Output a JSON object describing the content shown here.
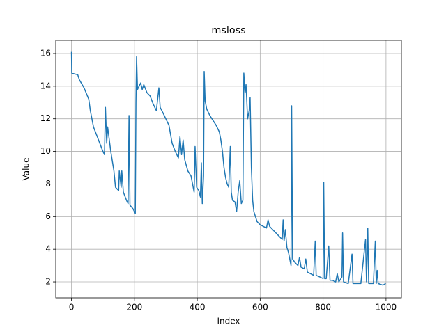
{
  "chart_data": {
    "type": "line",
    "title": "msloss",
    "x_label": "Index",
    "y_label": "Value",
    "x": [
      0,
      1,
      20,
      25,
      40,
      55,
      60,
      70,
      80,
      90,
      100,
      105,
      108,
      112,
      115,
      125,
      135,
      140,
      150,
      152,
      158,
      160,
      165,
      175,
      180,
      183,
      186,
      195,
      203,
      205,
      207,
      210,
      220,
      225,
      230,
      240,
      250,
      260,
      270,
      278,
      282,
      290,
      300,
      310,
      320,
      330,
      340,
      345,
      350,
      355,
      360,
      370,
      380,
      385,
      390,
      393,
      398,
      405,
      410,
      413,
      416,
      420,
      422,
      425,
      430,
      440,
      450,
      460,
      470,
      475,
      480,
      485,
      490,
      495,
      500,
      505,
      508,
      512,
      520,
      525,
      530,
      535,
      540,
      545,
      548,
      552,
      555,
      560,
      565,
      568,
      572,
      576,
      580,
      590,
      600,
      620,
      625,
      630,
      650,
      660,
      670,
      673,
      676,
      680,
      685,
      690,
      698,
      700,
      703,
      710,
      720,
      725,
      730,
      740,
      745,
      750,
      760,
      770,
      775,
      778,
      790,
      800,
      802,
      805,
      810,
      818,
      822,
      830,
      840,
      845,
      850,
      860,
      862,
      865,
      880,
      892,
      895,
      910,
      920,
      935,
      938,
      942,
      945,
      960,
      966,
      969,
      972,
      975,
      990,
      999
    ],
    "series": [
      {
        "name": "msloss",
        "color": "#1f77b4",
        "values": [
          16.1,
          14.8,
          14.7,
          14.4,
          13.9,
          13.2,
          12.5,
          11.5,
          11.0,
          10.5,
          10.0,
          9.8,
          12.7,
          10.5,
          11.5,
          10.0,
          8.8,
          7.8,
          7.6,
          8.8,
          7.8,
          8.8,
          7.5,
          7.0,
          6.8,
          12.2,
          6.7,
          6.5,
          6.2,
          13.0,
          15.8,
          13.8,
          14.2,
          13.8,
          14.1,
          13.6,
          13.4,
          12.9,
          12.5,
          13.9,
          12.7,
          12.4,
          12.0,
          11.6,
          10.5,
          10.0,
          9.6,
          10.9,
          9.8,
          10.7,
          9.5,
          8.8,
          8.5,
          8.0,
          7.5,
          10.3,
          7.8,
          7.6,
          7.2,
          9.3,
          6.8,
          8.5,
          14.9,
          13.1,
          12.6,
          12.2,
          11.9,
          11.6,
          11.2,
          10.7,
          10.0,
          9.0,
          8.4,
          8.0,
          7.8,
          10.3,
          7.5,
          7.0,
          6.9,
          6.3,
          7.5,
          8.2,
          6.8,
          7.0,
          14.8,
          13.6,
          14.1,
          12.0,
          12.5,
          13.3,
          9.0,
          7.0,
          6.3,
          5.7,
          5.5,
          5.3,
          5.8,
          5.4,
          5.0,
          4.8,
          4.6,
          5.8,
          4.5,
          5.2,
          4.1,
          3.8,
          3.0,
          12.8,
          3.4,
          3.2,
          3.0,
          3.5,
          2.9,
          2.8,
          3.4,
          2.6,
          2.5,
          2.4,
          4.5,
          2.4,
          2.3,
          2.2,
          8.1,
          2.2,
          2.2,
          4.2,
          2.1,
          2.1,
          2.0,
          2.5,
          2.0,
          2.3,
          5.0,
          2.0,
          1.9,
          3.7,
          1.9,
          1.9,
          1.9,
          4.6,
          2.0,
          5.3,
          1.9,
          1.9,
          4.5,
          1.9,
          2.7,
          1.9,
          1.8,
          1.9
        ]
      }
    ],
    "xlim": [
      -50,
      1049
    ],
    "ylim": [
      1.02,
      16.81
    ],
    "xticks": [
      0,
      200,
      400,
      600,
      800,
      1000
    ],
    "yticks": [
      2,
      4,
      6,
      8,
      10,
      12,
      14,
      16
    ],
    "grid": true
  }
}
